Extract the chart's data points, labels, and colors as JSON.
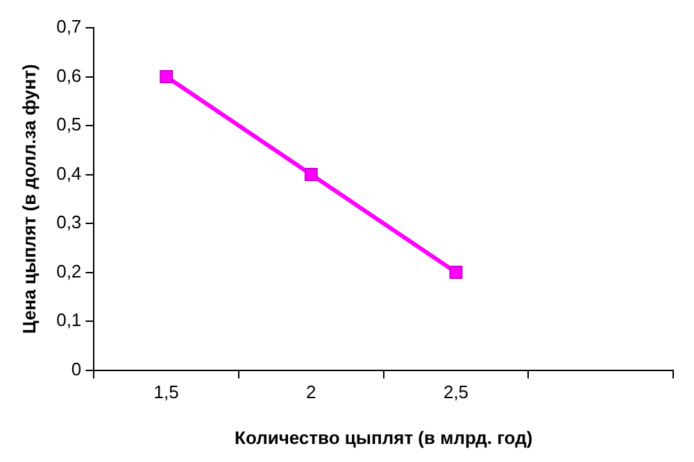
{
  "chart_data": {
    "type": "line",
    "xlabel": "Количество цыплят (в млрд. год)",
    "ylabel": "Цена цыплят (в долл.за фунт)",
    "categories": [
      "1,5",
      "2",
      "2,5",
      null
    ],
    "series": [
      {
        "color": "#ff00ff",
        "values": [
          0.6,
          0.4,
          0.2,
          null
        ]
      }
    ],
    "ylim": [
      0,
      0.7
    ],
    "yticks": [
      0,
      {
        "value": 0.1,
        "label": "0,1"
      },
      {
        "value": 0.2,
        "label": "0,2"
      },
      {
        "value": 0.3,
        "label": "0,3"
      },
      {
        "value": 0.4,
        "label": "0,4"
      },
      {
        "value": 0.5,
        "label": "0,5"
      },
      {
        "value": 0.6,
        "label": "0,6"
      },
      {
        "value": 0.7,
        "label": "0,7"
      }
    ],
    "grid": false,
    "legend": false,
    "marker": "square",
    "line_style": "solid"
  }
}
